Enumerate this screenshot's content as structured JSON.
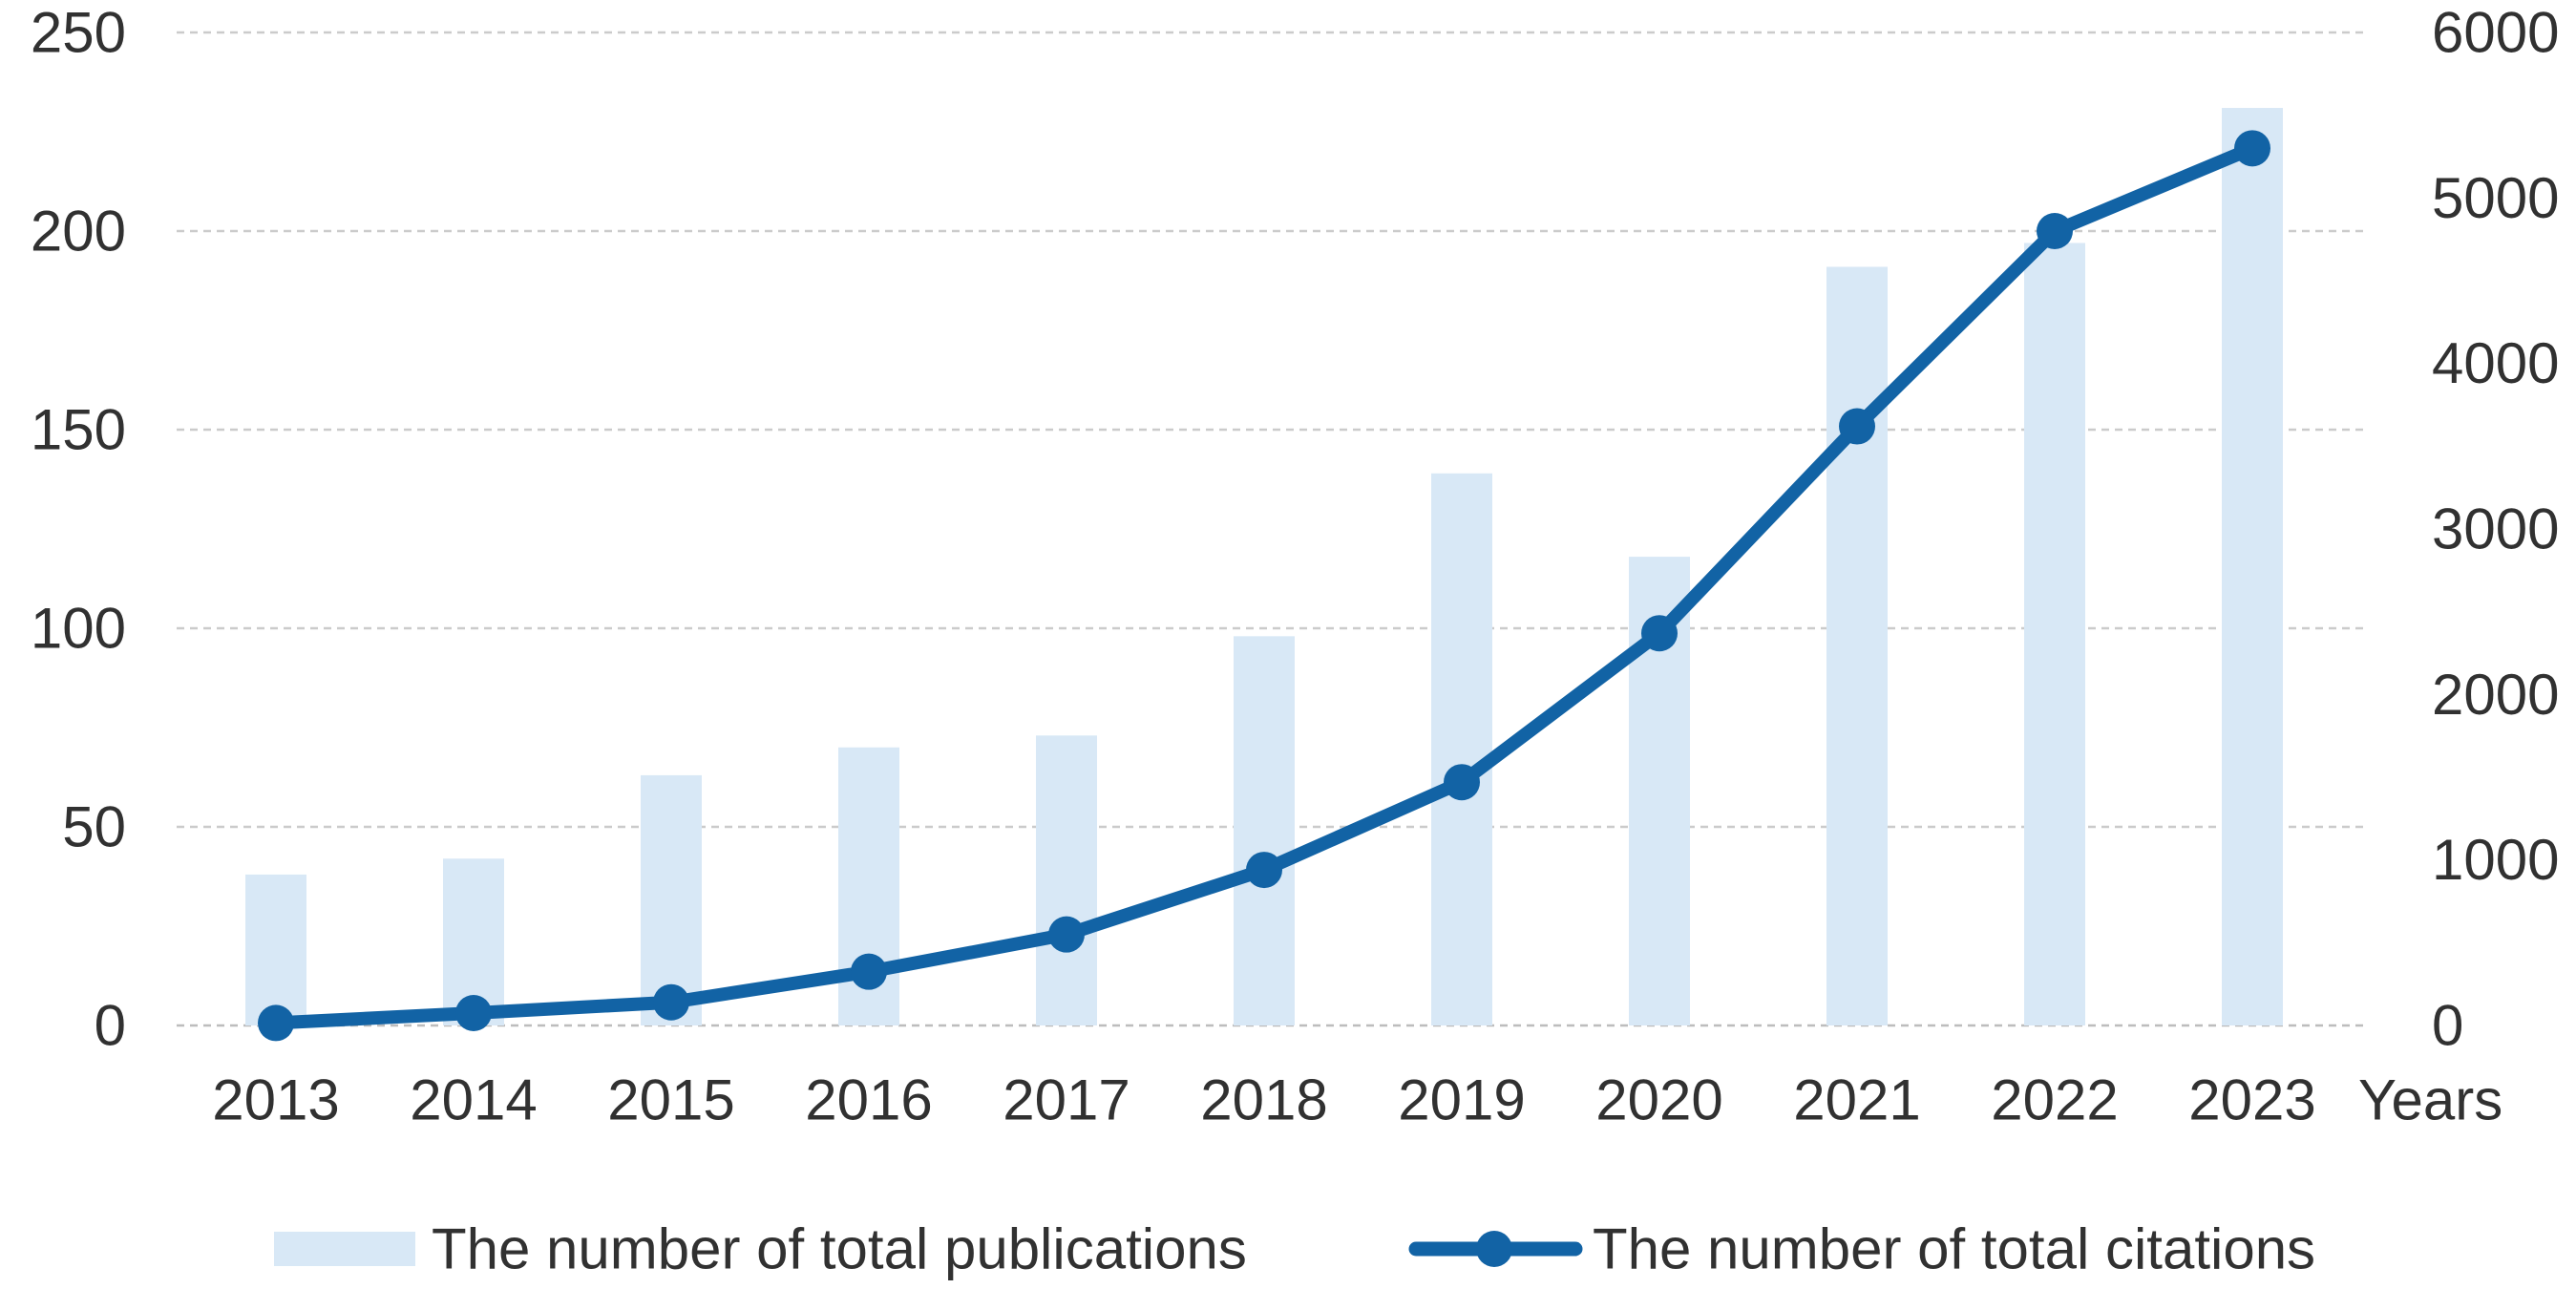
{
  "chart_data": {
    "type": "combo",
    "title": "",
    "categories": [
      "2013",
      "2014",
      "2015",
      "2016",
      "2017",
      "2018",
      "2019",
      "2020",
      "2021",
      "2022",
      "2023"
    ],
    "series": [
      {
        "name": "The number of total publications",
        "type": "bar",
        "axis": "left",
        "color": "#D8E8F6",
        "values": [
          38,
          42,
          63,
          70,
          73,
          98,
          139,
          118,
          191,
          197,
          231
        ]
      },
      {
        "name": "The number of total citations",
        "type": "line",
        "axis": "right",
        "color": "#1263A5",
        "values": [
          15,
          75,
          140,
          325,
          550,
          940,
          1470,
          2370,
          3620,
          4800,
          5300
        ]
      }
    ],
    "left_axis": {
      "ticks": [
        0,
        50,
        100,
        150,
        200,
        250
      ],
      "range": [
        0,
        250
      ]
    },
    "right_axis": {
      "ticks": [
        0,
        1000,
        2000,
        3000,
        4000,
        5000,
        6000
      ],
      "range": [
        0,
        6000
      ]
    },
    "xlabel": "Years",
    "grid": true,
    "legend_position": "bottom",
    "gridline_color": "#CBCBCB",
    "zero_line_color": "#BDBDBD",
    "text_color": "#313131",
    "background": "#FFFFFF"
  }
}
